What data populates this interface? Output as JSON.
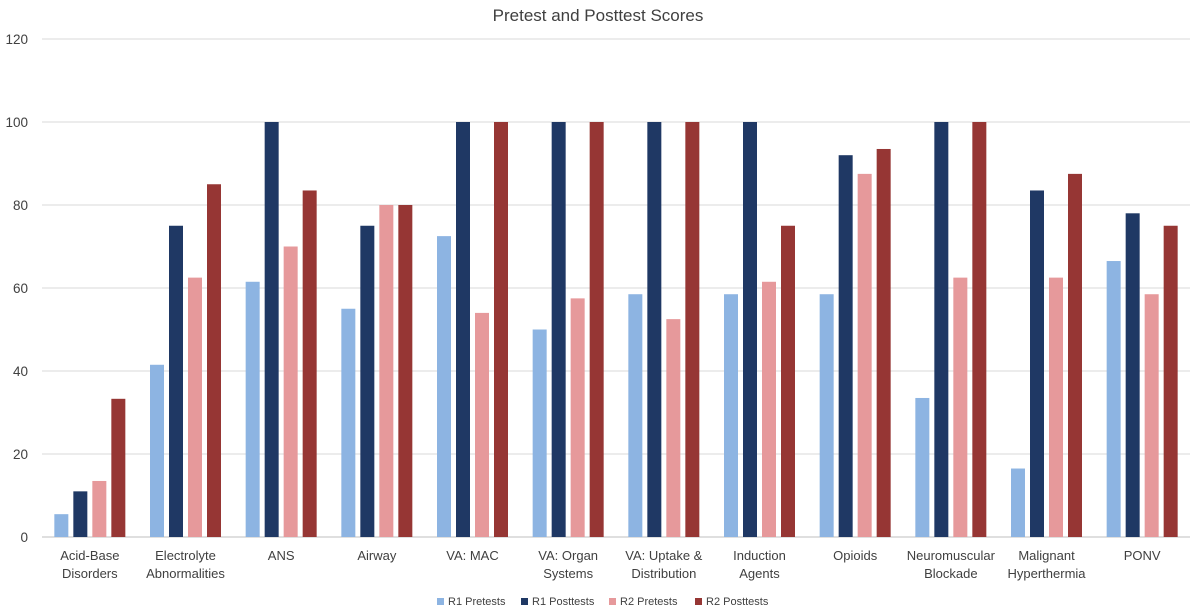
{
  "chart_data": {
    "type": "bar",
    "title": "Pretest and Posttest Scores",
    "xlabel": "",
    "ylabel": "",
    "ylim": [
      0,
      120
    ],
    "yticks": [
      0,
      20,
      40,
      60,
      80,
      100,
      120
    ],
    "grid": true,
    "legend_position": "bottom",
    "categories": [
      [
        "Acid-Base",
        "Disorders"
      ],
      [
        "Electrolyte",
        "Abnormalities"
      ],
      [
        "ANS"
      ],
      [
        "Airway"
      ],
      [
        "VA: MAC"
      ],
      [
        "VA: Organ",
        "Systems"
      ],
      [
        "VA: Uptake &",
        "Distribution"
      ],
      [
        "Induction",
        "Agents"
      ],
      [
        "Opioids"
      ],
      [
        "Neuromuscular",
        "Blockade"
      ],
      [
        "Malignant",
        "Hyperthermia"
      ],
      [
        "PONV"
      ]
    ],
    "series": [
      {
        "name": "R1 Pretests",
        "color": "#8db4e2",
        "values": [
          5.5,
          41.5,
          61.5,
          55,
          72.5,
          50,
          58.5,
          58.5,
          58.5,
          33.5,
          16.5,
          66.5
        ]
      },
      {
        "name": "R1 Posttests",
        "color": "#1f3864",
        "values": [
          11,
          75,
          100,
          75,
          100,
          100,
          100,
          100,
          92,
          100,
          83.5,
          78
        ]
      },
      {
        "name": "R2 Pretests",
        "color": "#e6999b",
        "values": [
          13.5,
          62.5,
          70,
          80,
          54,
          57.5,
          52.5,
          61.5,
          87.5,
          62.5,
          62.5,
          58.5
        ]
      },
      {
        "name": "R2 Posttests",
        "color": "#963634",
        "values": [
          33.3,
          85,
          83.5,
          80,
          100,
          100,
          100,
          75,
          93.5,
          100,
          87.5,
          75
        ]
      }
    ]
  }
}
